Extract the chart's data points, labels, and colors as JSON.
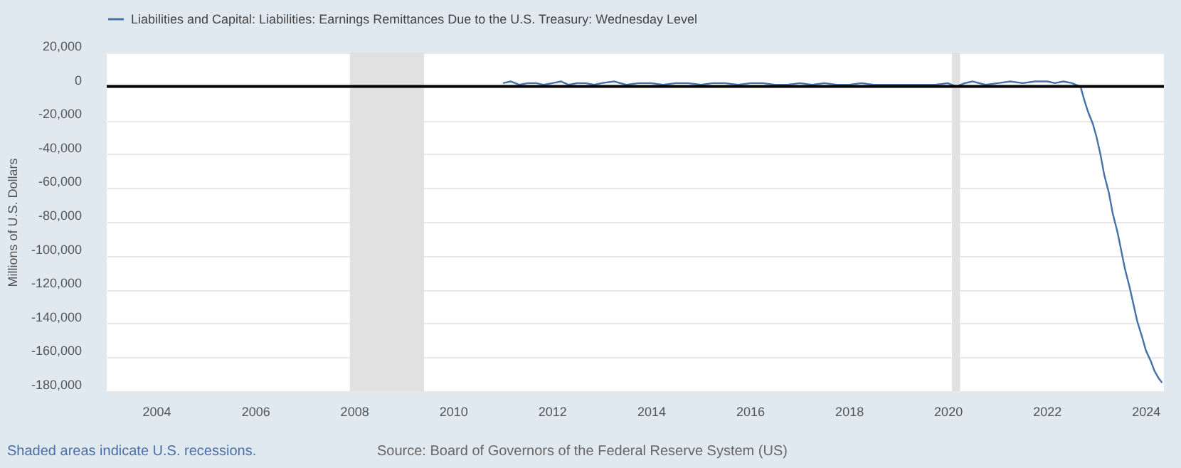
{
  "chart_data": {
    "type": "line",
    "x": [
      "2011-01-05",
      "2011-03-02",
      "2011-05-04",
      "2011-07-06",
      "2011-09-07",
      "2011-11-02",
      "2012-01-04",
      "2012-03-07",
      "2012-05-02",
      "2012-07-04",
      "2012-09-05",
      "2012-11-07",
      "2013-01-02",
      "2013-04-03",
      "2013-07-03",
      "2013-10-02",
      "2014-01-01",
      "2014-04-02",
      "2014-07-02",
      "2014-10-01",
      "2015-01-07",
      "2015-04-01",
      "2015-07-01",
      "2015-10-07",
      "2016-01-06",
      "2016-04-06",
      "2016-07-06",
      "2016-10-05",
      "2017-01-04",
      "2017-04-05",
      "2017-07-05",
      "2017-10-04",
      "2018-01-03",
      "2018-04-04",
      "2018-07-04",
      "2018-10-03",
      "2019-01-02",
      "2019-04-03",
      "2019-07-03",
      "2019-10-02",
      "2020-01-01",
      "2020-03-04",
      "2020-05-06",
      "2020-07-01",
      "2020-10-07",
      "2021-01-06",
      "2021-04-07",
      "2021-07-07",
      "2021-10-06",
      "2022-01-05",
      "2022-03-02",
      "2022-05-04",
      "2022-07-06",
      "2022-08-03",
      "2022-09-07",
      "2022-10-05",
      "2022-11-02",
      "2022-12-07",
      "2023-01-04",
      "2023-02-01",
      "2023-03-01",
      "2023-04-05",
      "2023-05-03",
      "2023-06-07",
      "2023-07-05",
      "2023-08-02",
      "2023-09-06",
      "2023-10-04",
      "2023-11-01",
      "2023-12-06",
      "2024-01-03",
      "2024-02-07",
      "2024-03-06",
      "2024-04-03",
      "2024-05-01"
    ],
    "series": [
      {
        "name": "Liabilities and Capital: Liabilities: Earnings Remittances Due to the U.S. Treasury: Wednesday Level",
        "color": "#4572a7",
        "values": [
          2000,
          3000,
          1000,
          2000,
          2000,
          1000,
          2000,
          3000,
          1000,
          2000,
          2000,
          1000,
          2000,
          3000,
          1000,
          2000,
          2000,
          1000,
          2000,
          2000,
          1000,
          2000,
          2000,
          1000,
          2000,
          2000,
          1000,
          1000,
          2000,
          1000,
          2000,
          1000,
          1000,
          2000,
          1000,
          1000,
          1000,
          1000,
          1000,
          1000,
          2000,
          0,
          2000,
          3000,
          1000,
          2000,
          3000,
          2000,
          3000,
          3000,
          2000,
          3000,
          2000,
          1000,
          0,
          -8000,
          -15000,
          -22000,
          -30000,
          -40000,
          -52000,
          -63000,
          -75000,
          -86000,
          -97000,
          -108000,
          -119000,
          -129000,
          -139000,
          -148000,
          -156000,
          -162000,
          -168000,
          -172000,
          -175000
        ]
      }
    ],
    "ylabel": "Millions of U.S. Dollars",
    "xlim": [
      "2003-01-01",
      "2024-05-15"
    ],
    "xticks": [
      "2004",
      "2006",
      "2008",
      "2010",
      "2012",
      "2014",
      "2016",
      "2018",
      "2020",
      "2022",
      "2024"
    ],
    "ylim": [
      -180000,
      20000
    ],
    "yticks": [
      {
        "value": 20000,
        "label": "20,000"
      },
      {
        "value": 0,
        "label": "0"
      },
      {
        "value": -20000,
        "label": "-20,000"
      },
      {
        "value": -40000,
        "label": "-40,000"
      },
      {
        "value": -60000,
        "label": "-60,000"
      },
      {
        "value": -80000,
        "label": "-80,000"
      },
      {
        "value": -100000,
        "label": "-100,000"
      },
      {
        "value": -120000,
        "label": "-120,000"
      },
      {
        "value": -140000,
        "label": "-140,000"
      },
      {
        "value": -160000,
        "label": "-160,000"
      },
      {
        "value": -180000,
        "label": "-180,000"
      }
    ],
    "ref_lines": [
      {
        "axis": "y",
        "value": 0,
        "color": "#000000"
      }
    ],
    "bands": [
      {
        "axis": "x",
        "from": "2007-12-01",
        "to": "2009-06-01",
        "color": "#e1e1e1"
      },
      {
        "axis": "x",
        "from": "2020-02-01",
        "to": "2020-04-01",
        "color": "#e1e1e1"
      }
    ],
    "annotations": [
      "Shaded areas indicate U.S. recessions.",
      "Source: Board of Governors of the Federal Reserve System (US)"
    ],
    "grid": "y",
    "legend": "top left",
    "line_style": "solid",
    "marker": "none"
  }
}
